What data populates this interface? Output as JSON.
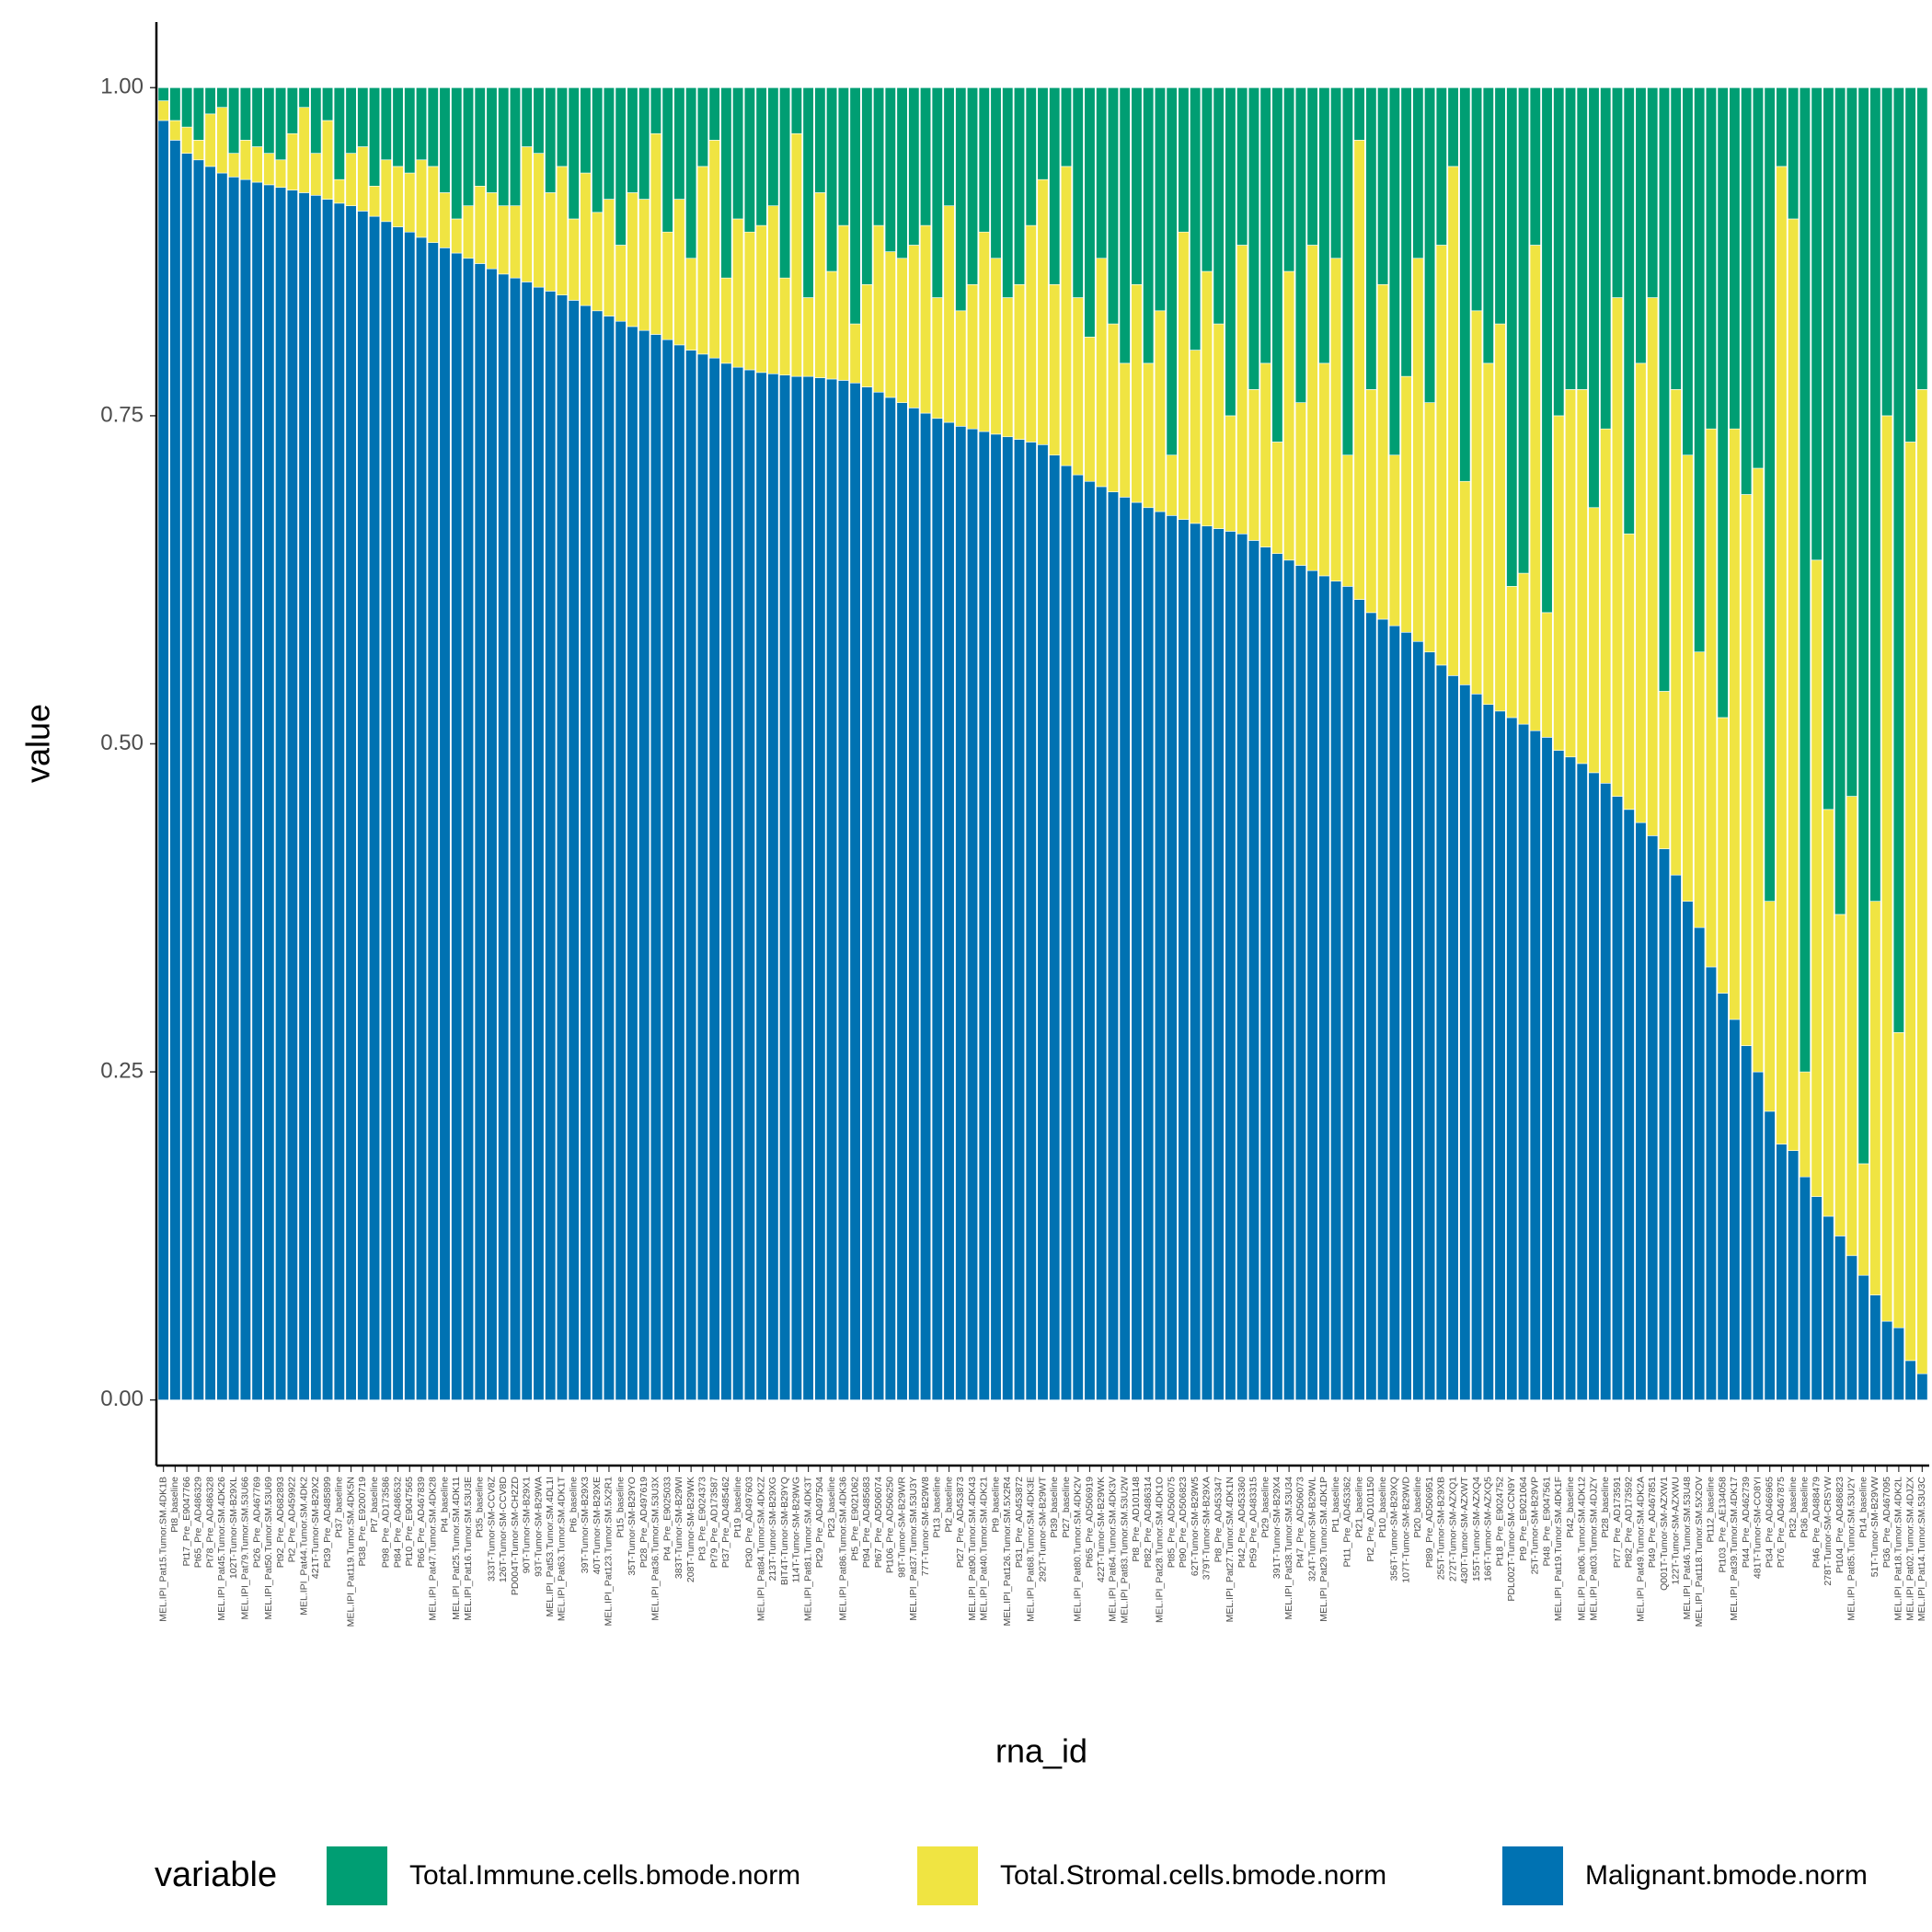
{
  "chart_data": {
    "type": "stacked_bar",
    "xlabel": "rna_id",
    "ylabel": "value",
    "legend_title": "variable",
    "legend": "bottom",
    "grid": false,
    "ylim": [
      -0.05,
      1.05
    ],
    "yticks": [
      {
        "value": 0,
        "label": "0.00"
      },
      0.25,
      {
        "value": 0.5,
        "label": "0.50"
      },
      0.75,
      {
        "value": 1,
        "label": "1.00"
      }
    ],
    "categories": [
      "MEL.IPI_Pat15.Tumor.SM.4DK1B",
      "Pt8_baseline",
      "Pt17_Pre_E9047766",
      "Pt65_Pre_AD486329",
      "Pt78_Pre_AD486328",
      "MEL.IPI_Pat45.Tumor.SM.4DK26",
      "102T-Tumor-SM-B29XL",
      "MEL.IPI_Pat79.Tumor.SM.53U66",
      "Pt26_Pre_AD467769",
      "MEL.IPI_Pat50.Tumor.SM.53U69",
      "Pt92_Pre_AD682893",
      "Pt2_Pre_AD459922",
      "MEL.IPI_Pat44.Tumor.SM.4DK2",
      "421T-Tumor-SM-B29X2",
      "Pt39_Pre_AD485899",
      "Pt37_baseline",
      "MEL.IPI_Pat119.Tumor.SM.4DK5N",
      "Pt38_Pre_E9200719",
      "Pt7_baseline",
      "Pt98_Pre_AD173586",
      "Pt84_Pre_AD486532",
      "Pt10_Pre_E9047565",
      "Pt66_Pre_AD467839",
      "MEL.IPI_Pat47.Tumor.SM.4DK28",
      "Pt4_baseline",
      "MEL.IPI_Pat25.Tumor.SM.4DK11",
      "MEL.IPI_Pat16.Tumor.SM.53U3E",
      "Pt35_baseline",
      "333T-Tumor-SM-CCV8Z",
      "126T-Tumor-SM-CCV8D",
      "PD004T-Tumor-SM-CH2ZD",
      "90T-Tumor-SM-B29X1",
      "93T-Tumor-SM-B29WA",
      "MEL.IPI_Pat53.Tumor.SM.4DL1I",
      "MEL.IPI_Pat63.Tumor.SM.4DK1T",
      "Pt6_baseline",
      "39T-Tumor-SM-B29X3",
      "40T-Tumor-SM-B29XE",
      "MEL.IPI_Pat123.Tumor.SM.5X2R1",
      "Pt15_baseline",
      "35T-Tumor-SM-B29YO",
      "Pt28_Pre_AD497619",
      "MEL.IPI_Pat36.Tumor.SM.53U3X",
      "Pt4_Pre_E9025033",
      "383T-Tumor-SM-B29WI",
      "208T-Tumor-SM-B29WK",
      "Pt3_Pre_E9024373",
      "Pt79_Pre_AD173587",
      "Pt37_Pre_AD485462",
      "Pt19_baseline",
      "Pt30_Pre_AD497603",
      "MEL.IPI_Pat84.Tumor.SM.4DK2Z",
      "213T-Tumor-SM-B29XG",
      "BIT4T-Tumor-SM-B29YQ",
      "114T-Tumor-SM-B29WG",
      "MEL.IPI_Pat81.Tumor.SM.4DK3T",
      "Pt29_Pre_AD497504",
      "Pt23_baseline",
      "MEL.IPI_Pat86.Tumor.SM.4DK36",
      "Pt5_Pre_E9021062",
      "Pt94_Pre_AD485683",
      "Pt67_Pre_AD506074",
      "Pt106_Pre_AD506250",
      "98T-Tumor-SM-B29WR",
      "MEL.IPI_Pat37.Tumor.SM.53U3Y",
      "77T-Tumor-SM-B29W8",
      "Pt13_baseline",
      "Pt2_baseline",
      "Pt27_Pre_AD453873",
      "MEL.IPI_Pat90.Tumor.SM.4DK43",
      "MEL.IPI_Pat40.Tumor.SM.4DK21",
      "Pt9_baseline",
      "MEL.IPI_Pat126.Tumor.SM.5X2R4",
      "Pt31_Pre_AD453872",
      "MEL.IPI_Pat68.Tumor.SM.4DK3E",
      "292T-Tumor-SM-B29WT",
      "Pt39_baseline",
      "Pt27_baseline",
      "MEL.IPI_Pat80.Tumor.SM.4DK2V",
      "Pt65_Pre_AD506919",
      "422T-Tumor-SM-B29WK",
      "MEL.IPI_Pat64.Tumor.SM.4DK3V",
      "MEL.IPI_Pat83.Tumor.SM.53U2W",
      "Pt8_Pre_AD101148",
      "Pt82_Pre_AD486314",
      "MEL.IPI_Pat28.Tumor.SM.4DK1O",
      "Pt85_Pre_AD506075",
      "Pt90_Pre_AD506823",
      "62T-Tumor-SM-B29W5",
      "379T-Tumor-SM-B29XA",
      "Pt8_Pre_AD453347",
      "MEL.IPI_Pat27.Tumor.SM.4DK1N",
      "Pt42_Pre_AD453360",
      "Pt59_Pre_AD483315",
      "Pt29_baseline",
      "391T-Tumor-SM-B29X4",
      "MEL.IPI_Pat38.Tumor.SM.53U34",
      "Pt47_Pre_AD506073",
      "324T-Tumor-SM-B29WL",
      "MEL.IPI_Pat29.Tumor.SM.4DK1P",
      "Pt1_baseline",
      "Pt11_Pre_AD453362",
      "Pt21_baseline",
      "Pt2_Pre_AD101150",
      "Pt10_baseline",
      "356T-Tumor-SM-B29XQ",
      "107T-Tumor-SM-B29WD",
      "Pt20_baseline",
      "Pt89_Pre_AD506951",
      "255T-Tumor-SM-B29XB",
      "272T-Tumor-SM-AZXQ1",
      "430T-Tumor-SM-AZXWT",
      "155T-Tumor-SM-AZXQ4",
      "166T-Tumor-SM-AZXQ5",
      "Pt18_Pre_E9024752",
      "PDL002T-Tumor-SM-CCN9Y",
      "Pt9_Pre_E9021064",
      "25T-Tumor-SM-B29VP",
      "Pt48_Pre_E9047561",
      "MEL.IPI_Pat19.Tumor.SM.4DK1F",
      "Pt42_baseline",
      "MEL.IPI_Pat06.Tumor.SM.4DK12",
      "MEL.IPI_Pat03.Tumor.SM.4DJZY",
      "Pt28_baseline",
      "Pt77_Pre_AD173591",
      "Pt82_Pre_AD173592",
      "MEL.IPI_Pat49.Tumor.SM.4DK2A",
      "Pt49_Pre_AD467851",
      "Q001T-Tumor-SM-AZXW1",
      "122T-Tumor-SM-AZXWU",
      "MEL.IPI_Pat46.Tumor.SM.53U48",
      "MEL.IPI_Pat118.Tumor.SM.5X2OV",
      "Pt112_baseline",
      "Pt103_Pre_AE134058",
      "MEL.IPI_Pat39.Tumor.SM.4DK17",
      "Pt44_Pre_AD462739",
      "481T-Tumor-SM-CO8YI",
      "Pt34_Pre_AD466965",
      "Pt76_Pre_AD467875",
      "Pt32_baseline",
      "Pt36_baseline",
      "Pt46_Pre_AD488479",
      "278T-Tumor-SM-CRSYW",
      "Pt104_Pre_AD486823",
      "MEL.IPI_Pat85.Tumor.SM.53U2Y",
      "Pt14_baseline",
      "51T-Tumor-SM-B29VW",
      "Pt36_Pre_AD467095",
      "MEL.IPI_Pat18.Tumor.SM.4DK2L",
      "MEL.IPI_Pat02.Tumor.SM.4DJZX",
      "MEL.IPI_Pat14.Tumor.SM.53U3C"
    ],
    "series": [
      {
        "name": "Total.Immune.cells.bmode.norm",
        "color": "#009E73",
        "values": [
          0.01,
          0.025,
          0.03,
          0.04,
          0.02,
          0.015,
          0.05,
          0.04,
          0.045,
          0.05,
          0.055,
          0.035,
          0.015,
          0.05,
          0.025,
          0.07,
          0.05,
          0.045,
          0.075,
          0.055,
          0.06,
          0.065,
          0.055,
          0.06,
          0.08,
          0.1,
          0.09,
          0.075,
          0.08,
          0.09,
          0.09,
          0.045,
          0.05,
          0.08,
          0.06,
          0.1,
          0.065,
          0.095,
          0.085,
          0.12,
          0.08,
          0.085,
          0.035,
          0.11,
          0.085,
          0.13,
          0.06,
          0.04,
          0.145,
          0.1,
          0.11,
          0.105,
          0.09,
          0.145,
          0.035,
          0.16,
          0.08,
          0.14,
          0.105,
          0.18,
          0.15,
          0.105,
          0.125,
          0.13,
          0.12,
          0.105,
          0.16,
          0.09,
          0.17,
          0.15,
          0.11,
          0.13,
          0.16,
          0.15,
          0.105,
          0.07,
          0.15,
          0.06,
          0.16,
          0.19,
          0.13,
          0.18,
          0.21,
          0.15,
          0.21,
          0.17,
          0.28,
          0.11,
          0.2,
          0.14,
          0.18,
          0.25,
          0.12,
          0.23,
          0.21,
          0.27,
          0.14,
          0.24,
          0.12,
          0.21,
          0.13,
          0.28,
          0.04,
          0.23,
          0.15,
          0.28,
          0.22,
          0.13,
          0.24,
          0.12,
          0.06,
          0.3,
          0.17,
          0.21,
          0.18,
          0.38,
          0.37,
          0.12,
          0.4,
          0.25,
          0.23,
          0.23,
          0.32,
          0.26,
          0.16,
          0.34,
          0.21,
          0.16,
          0.46,
          0.23,
          0.28,
          0.43,
          0.26,
          0.48,
          0.26,
          0.31,
          0.29,
          0.62,
          0.06,
          0.1,
          0.75,
          0.36,
          0.55,
          0.63,
          0.54,
          0.82,
          0.62,
          0.25,
          0.72,
          0.27,
          0.23
        ]
      },
      {
        "name": "Total.Stromal.cells.bmode.norm",
        "color": "#F0E442",
        "values": [
          0.015,
          0.015,
          0.02,
          0.015,
          0.04,
          0.05,
          0.018,
          0.03,
          0.027,
          0.024,
          0.021,
          0.043,
          0.065,
          0.032,
          0.06,
          0.018,
          0.04,
          0.049,
          0.023,
          0.047,
          0.046,
          0.045,
          0.059,
          0.058,
          0.042,
          0.026,
          0.04,
          0.059,
          0.058,
          0.052,
          0.055,
          0.103,
          0.102,
          0.075,
          0.098,
          0.062,
          0.101,
          0.075,
          0.089,
          0.058,
          0.102,
          0.1,
          0.153,
          0.082,
          0.111,
          0.07,
          0.143,
          0.166,
          0.065,
          0.113,
          0.105,
          0.112,
          0.128,
          0.074,
          0.185,
          0.06,
          0.141,
          0.082,
          0.118,
          0.045,
          0.078,
          0.127,
          0.111,
          0.11,
          0.124,
          0.143,
          0.092,
          0.165,
          0.088,
          0.11,
          0.152,
          0.134,
          0.106,
          0.118,
          0.165,
          0.202,
          0.13,
          0.228,
          0.135,
          0.11,
          0.174,
          0.128,
          0.102,
          0.166,
          0.11,
          0.153,
          0.046,
          0.219,
          0.132,
          0.194,
          0.156,
          0.088,
          0.22,
          0.115,
          0.14,
          0.085,
          0.22,
          0.124,
          0.248,
          0.162,
          0.246,
          0.1,
          0.35,
          0.17,
          0.255,
          0.13,
          0.195,
          0.292,
          0.19,
          0.32,
          0.388,
          0.155,
          0.292,
          0.26,
          0.295,
          0.1,
          0.115,
          0.37,
          0.095,
          0.255,
          0.28,
          0.285,
          0.202,
          0.27,
          0.38,
          0.21,
          0.35,
          0.41,
          0.12,
          0.37,
          0.34,
          0.21,
          0.41,
          0.21,
          0.45,
          0.42,
          0.46,
          0.16,
          0.745,
          0.71,
          0.08,
          0.485,
          0.31,
          0.245,
          0.35,
          0.085,
          0.3,
          0.69,
          0.225,
          0.7,
          0.75
        ]
      },
      {
        "name": "Malignant.bmode.norm",
        "color": "#0072B2",
        "values": [
          0.975,
          0.96,
          0.95,
          0.945,
          0.94,
          0.935,
          0.932,
          0.93,
          0.928,
          0.926,
          0.924,
          0.922,
          0.92,
          0.918,
          0.915,
          0.912,
          0.91,
          0.906,
          0.902,
          0.898,
          0.894,
          0.89,
          0.886,
          0.882,
          0.878,
          0.874,
          0.87,
          0.866,
          0.862,
          0.858,
          0.855,
          0.852,
          0.848,
          0.845,
          0.842,
          0.838,
          0.834,
          0.83,
          0.826,
          0.822,
          0.818,
          0.815,
          0.812,
          0.808,
          0.804,
          0.8,
          0.797,
          0.794,
          0.79,
          0.787,
          0.785,
          0.783,
          0.782,
          0.781,
          0.78,
          0.78,
          0.779,
          0.778,
          0.777,
          0.775,
          0.772,
          0.768,
          0.764,
          0.76,
          0.756,
          0.752,
          0.748,
          0.745,
          0.742,
          0.74,
          0.738,
          0.736,
          0.734,
          0.732,
          0.73,
          0.728,
          0.72,
          0.712,
          0.705,
          0.7,
          0.696,
          0.692,
          0.688,
          0.684,
          0.68,
          0.677,
          0.674,
          0.671,
          0.668,
          0.666,
          0.664,
          0.662,
          0.66,
          0.655,
          0.65,
          0.645,
          0.64,
          0.636,
          0.632,
          0.628,
          0.624,
          0.62,
          0.61,
          0.6,
          0.595,
          0.59,
          0.585,
          0.578,
          0.57,
          0.56,
          0.552,
          0.545,
          0.538,
          0.53,
          0.525,
          0.52,
          0.515,
          0.51,
          0.505,
          0.495,
          0.49,
          0.485,
          0.478,
          0.47,
          0.46,
          0.45,
          0.44,
          0.43,
          0.42,
          0.4,
          0.38,
          0.36,
          0.33,
          0.31,
          0.29,
          0.27,
          0.25,
          0.22,
          0.195,
          0.19,
          0.17,
          0.155,
          0.14,
          0.125,
          0.11,
          0.095,
          0.08,
          0.06,
          0.055,
          0.03,
          0.02
        ]
      }
    ]
  }
}
